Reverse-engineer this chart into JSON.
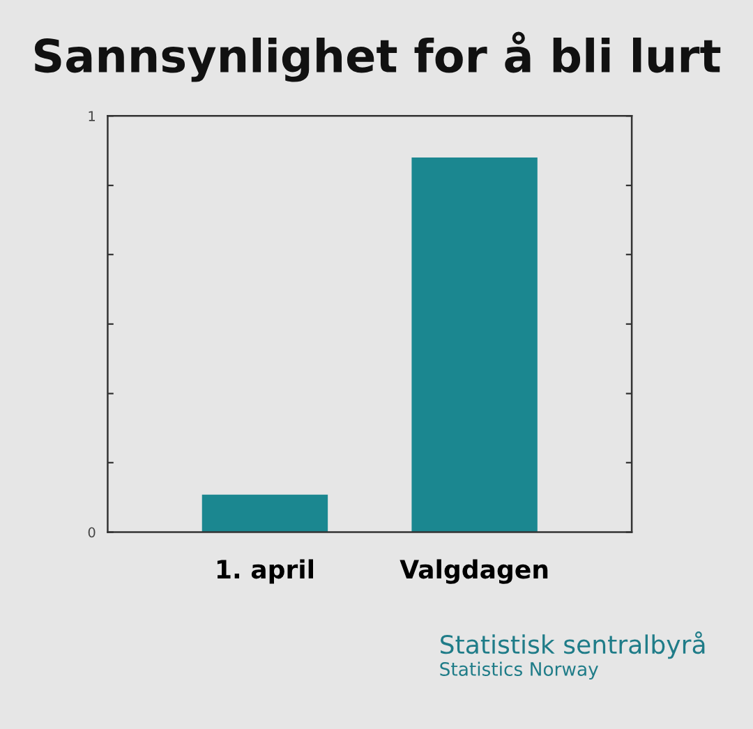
{
  "chart_data": {
    "type": "bar",
    "title": "Sannsynlighet for å bli lurt",
    "categories": [
      "1. april",
      "Valgdagen"
    ],
    "values": [
      0.09,
      0.9
    ],
    "color": "#1b8790",
    "ylim": [
      0,
      1
    ],
    "yticks": [
      0,
      {
        "value": 0.167,
        "label": null
      },
      {
        "value": 0.333,
        "label": null
      },
      {
        "value": 0.5,
        "label": null
      },
      {
        "value": 0.667,
        "label": null
      },
      {
        "value": 0.833,
        "label": null
      },
      1
    ],
    "grid": false,
    "annotations": [
      "Statistisk sentralbyrå",
      "Statistics Norway"
    ]
  }
}
